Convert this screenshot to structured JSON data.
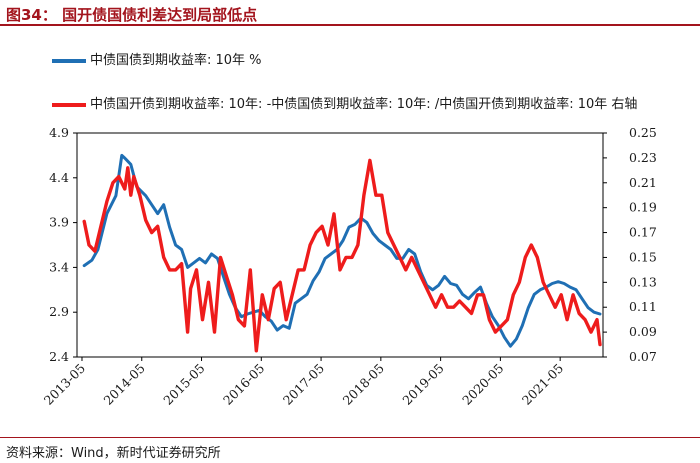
{
  "title": "图34：  国开债国债利差达到局部低点",
  "source": "资料来源：Wind，新时代证券研究所",
  "colors": {
    "accent": "#a3141d",
    "series1": "#1f6fb4",
    "series2": "#ee1c1c"
  },
  "chart_data": {
    "type": "line",
    "title": "图34：  国开债国债利差达到局部低点",
    "legend": [
      "中债国债到期收益率: 10年  %",
      "中债国开债到期收益率: 10年: -中债国债到期收益率: 10年: /中债国开债到期收益率: 10年    右轴"
    ],
    "x_ticks": [
      "2013-05",
      "2014-05",
      "2015-05",
      "2016-05",
      "2017-05",
      "2018-05",
      "2019-05",
      "2020-05",
      "2021-05"
    ],
    "x_range": [
      2013.25,
      2022.05
    ],
    "left_axis": {
      "ylim": [
        2.4,
        4.9
      ],
      "ticks": [
        "4.9",
        "4.4",
        "3.9",
        "3.4",
        "2.9",
        "2.4"
      ]
    },
    "right_axis": {
      "ylim": [
        0.07,
        0.25
      ],
      "ticks": [
        "0.25",
        "0.23",
        "0.21",
        "0.19",
        "0.17",
        "0.15",
        "0.13",
        "0.11",
        "0.09",
        "0.07"
      ]
    },
    "series": [
      {
        "name": "中债国债到期收益率: 10年  %",
        "axis": "left",
        "x": [
          2013.37,
          2013.5,
          2013.6,
          2013.75,
          2013.9,
          2014.0,
          2014.05,
          2014.15,
          2014.25,
          2014.4,
          2014.5,
          2014.6,
          2014.7,
          2014.8,
          2014.9,
          2015.0,
          2015.1,
          2015.2,
          2015.3,
          2015.4,
          2015.5,
          2015.6,
          2015.7,
          2015.8,
          2015.9,
          2016.0,
          2016.1,
          2016.2,
          2016.3,
          2016.4,
          2016.5,
          2016.6,
          2016.7,
          2016.8,
          2016.9,
          2017.0,
          2017.1,
          2017.2,
          2017.3,
          2017.4,
          2017.5,
          2017.6,
          2017.7,
          2017.8,
          2017.9,
          2018.0,
          2018.1,
          2018.2,
          2018.3,
          2018.4,
          2018.5,
          2018.6,
          2018.7,
          2018.8,
          2018.9,
          2019.0,
          2019.1,
          2019.2,
          2019.3,
          2019.4,
          2019.5,
          2019.6,
          2019.7,
          2019.8,
          2019.9,
          2020.0,
          2020.1,
          2020.2,
          2020.3,
          2020.4,
          2020.5,
          2020.6,
          2020.7,
          2020.8,
          2020.9,
          2021.0,
          2021.1,
          2021.2,
          2021.3,
          2021.4,
          2021.5,
          2021.6,
          2021.7,
          2021.8,
          2021.9,
          2022.0
        ],
        "y": [
          3.42,
          3.48,
          3.6,
          4.0,
          4.2,
          4.65,
          4.62,
          4.55,
          4.3,
          4.2,
          4.1,
          4.0,
          4.1,
          3.85,
          3.65,
          3.6,
          3.4,
          3.45,
          3.5,
          3.45,
          3.55,
          3.5,
          3.3,
          3.1,
          2.95,
          2.85,
          2.88,
          2.9,
          2.92,
          2.85,
          2.8,
          2.7,
          2.75,
          2.72,
          3.0,
          3.05,
          3.1,
          3.25,
          3.35,
          3.5,
          3.55,
          3.6,
          3.7,
          3.85,
          3.88,
          3.95,
          3.9,
          3.78,
          3.7,
          3.65,
          3.6,
          3.5,
          3.5,
          3.6,
          3.55,
          3.35,
          3.2,
          3.15,
          3.2,
          3.3,
          3.22,
          3.2,
          3.1,
          3.05,
          3.12,
          3.18,
          3.0,
          2.85,
          2.75,
          2.62,
          2.52,
          2.6,
          2.75,
          2.95,
          3.1,
          3.15,
          3.18,
          3.22,
          3.24,
          3.22,
          3.18,
          3.15,
          3.05,
          2.95,
          2.9,
          2.88
        ]
      },
      {
        "name": "中债国开债到期收益率: 10年: -中债国债到期收益率: 10年: /中债国开债到期收益率: 10年",
        "axis": "right",
        "x": [
          2013.37,
          2013.45,
          2013.55,
          2013.65,
          2013.75,
          2013.85,
          2013.95,
          2014.05,
          2014.1,
          2014.15,
          2014.2,
          2014.3,
          2014.4,
          2014.5,
          2014.6,
          2014.7,
          2014.8,
          2014.9,
          2015.0,
          2015.1,
          2015.15,
          2015.25,
          2015.35,
          2015.45,
          2015.55,
          2015.65,
          2015.75,
          2015.85,
          2015.95,
          2016.05,
          2016.15,
          2016.25,
          2016.35,
          2016.45,
          2016.55,
          2016.65,
          2016.75,
          2016.85,
          2016.95,
          2017.05,
          2017.15,
          2017.25,
          2017.35,
          2017.45,
          2017.55,
          2017.65,
          2017.75,
          2017.85,
          2017.95,
          2018.05,
          2018.15,
          2018.25,
          2018.35,
          2018.45,
          2018.55,
          2018.65,
          2018.75,
          2018.85,
          2018.95,
          2019.05,
          2019.15,
          2019.25,
          2019.35,
          2019.45,
          2019.55,
          2019.65,
          2019.75,
          2019.85,
          2019.95,
          2020.05,
          2020.15,
          2020.25,
          2020.35,
          2020.45,
          2020.55,
          2020.65,
          2020.75,
          2020.85,
          2020.95,
          2021.05,
          2021.15,
          2021.25,
          2021.35,
          2021.45,
          2021.55,
          2021.65,
          2021.75,
          2021.85,
          2021.95,
          2022.0
        ],
        "y": [
          0.179,
          0.16,
          0.155,
          0.175,
          0.195,
          0.21,
          0.215,
          0.205,
          0.222,
          0.2,
          0.215,
          0.2,
          0.18,
          0.17,
          0.175,
          0.15,
          0.14,
          0.14,
          0.145,
          0.09,
          0.125,
          0.14,
          0.1,
          0.13,
          0.09,
          0.15,
          0.135,
          0.12,
          0.1,
          0.095,
          0.14,
          0.075,
          0.12,
          0.1,
          0.125,
          0.13,
          0.1,
          0.12,
          0.14,
          0.14,
          0.16,
          0.17,
          0.175,
          0.16,
          0.185,
          0.14,
          0.15,
          0.15,
          0.16,
          0.2,
          0.228,
          0.2,
          0.2,
          0.17,
          0.16,
          0.15,
          0.14,
          0.15,
          0.14,
          0.13,
          0.12,
          0.11,
          0.12,
          0.11,
          0.11,
          0.115,
          0.11,
          0.105,
          0.12,
          0.12,
          0.1,
          0.09,
          0.095,
          0.1,
          0.12,
          0.13,
          0.15,
          0.16,
          0.15,
          0.13,
          0.12,
          0.11,
          0.12,
          0.1,
          0.12,
          0.105,
          0.1,
          0.09,
          0.1,
          0.08
        ]
      }
    ]
  }
}
